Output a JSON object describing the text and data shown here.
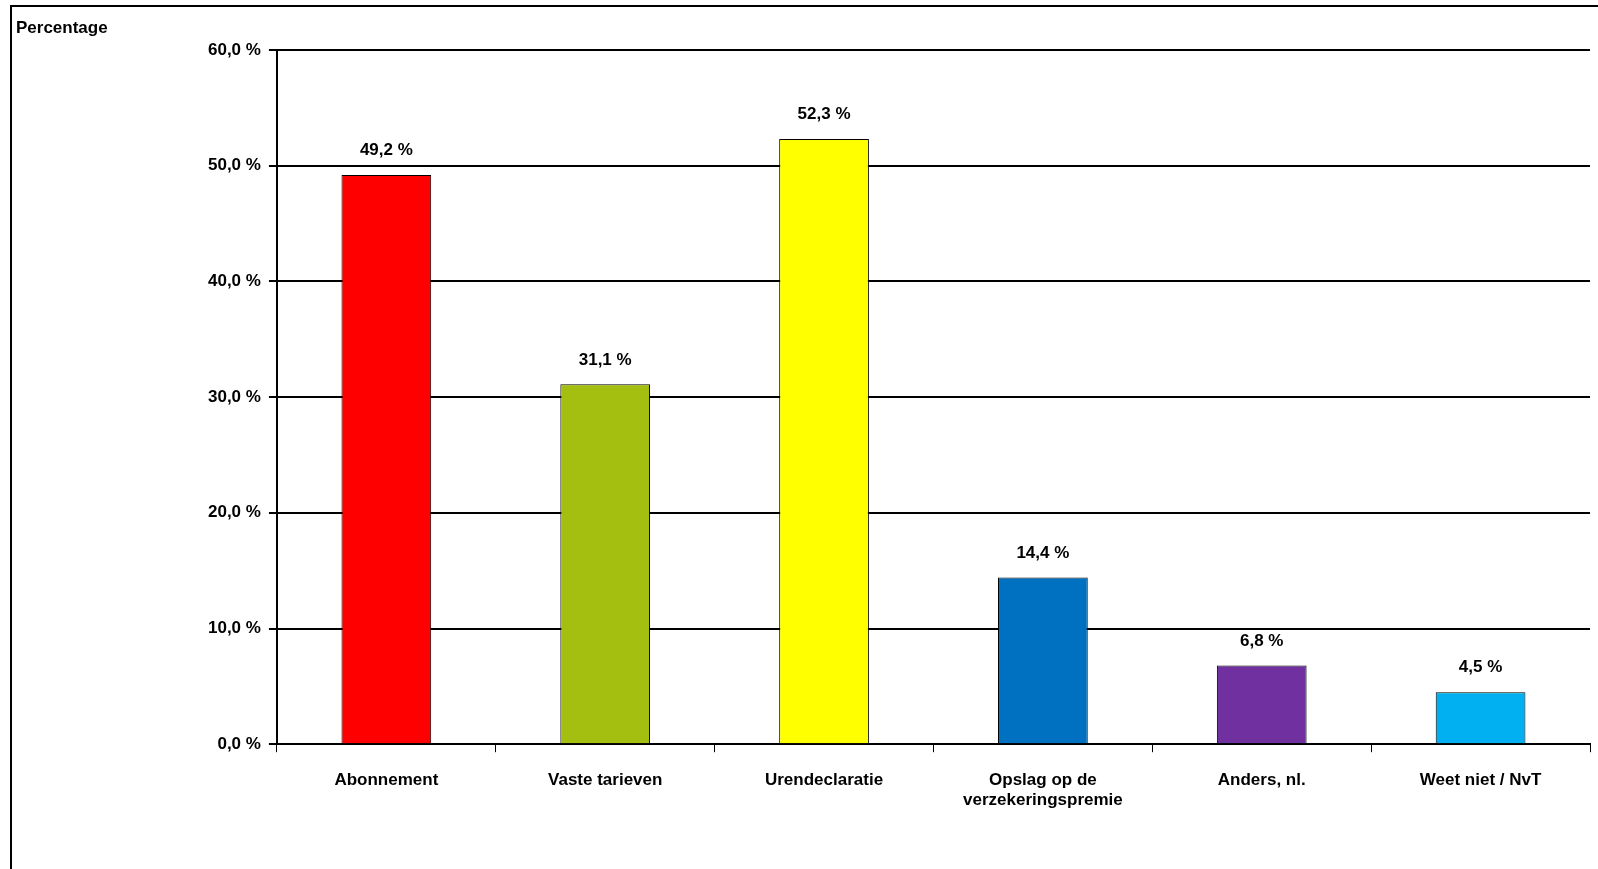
{
  "chart_data": {
    "type": "bar",
    "annotations": [
      "Percentage"
    ],
    "categories": [
      "Abonnement",
      "Vaste tarieven",
      "Urendeclaratie",
      "Opslag op de verzekeringspremie",
      "Anders, nl.",
      "Weet niet / NvT"
    ],
    "values": [
      49.2,
      31.1,
      52.3,
      14.4,
      6.8,
      4.5
    ],
    "value_labels": [
      "49,2 %",
      "31,1 %",
      "52,3 %",
      "14,4 %",
      "6,8 %",
      "4,5 %"
    ],
    "colors": [
      "#ff0000",
      "#a4bf0f",
      "#ffff00",
      "#0070c0",
      "#7030a0",
      "#00b0f0"
    ],
    "ylim": [
      0,
      60
    ],
    "yticks": [
      {
        "value": 0,
        "label": "0,0 %"
      },
      {
        "value": 10,
        "label": "10,0 %"
      },
      {
        "value": 20,
        "label": "20,0 %"
      },
      {
        "value": 30,
        "label": "30,0 %"
      },
      {
        "value": 40,
        "label": "40,0 %"
      },
      {
        "value": 50,
        "label": "50,0 %"
      },
      {
        "value": 60,
        "label": "60,0 %"
      }
    ],
    "grid": "y",
    "legend": false
  }
}
